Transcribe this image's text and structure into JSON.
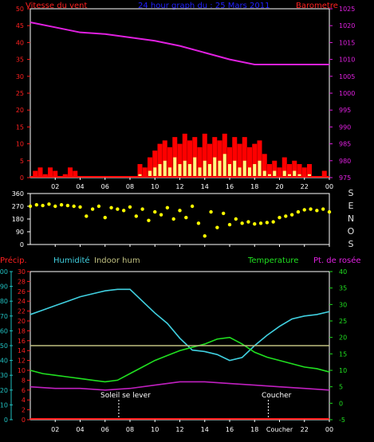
{
  "header": {
    "title": "24 hour graph du : 25 Mars 2011",
    "left_label": "Vitesse du vent",
    "right_label": "Barometre"
  },
  "bottom_labels": {
    "precip": "Précip.",
    "humidity": "Humidité",
    "indoor_hum": "Indoor hum",
    "temperature": "Temperature",
    "dew_point": "Pt. de rosée",
    "sunrise": "Soleil se lever",
    "sunset": "Coucher",
    "sunset_axis": "Coucher"
  },
  "colors": {
    "background": "#000000",
    "axis_red": "#ff2020",
    "pressure": "#e020e0",
    "wind_red": "#ff0000",
    "gust": "#ffff80",
    "direction": "#ffff00",
    "humidity": "#40d0e0",
    "temperature": "#20e020",
    "indoor": "#c0c080",
    "dew": "#c020c0",
    "hum_axis": "#20c0c0",
    "temp_axis": "#20e020",
    "senos": "#e0e0e0",
    "title_blue": "#2020ff",
    "white": "#ffffff"
  },
  "chart_data": [
    {
      "type": "line",
      "name": "wind-pressure",
      "x_tick_labels": [
        "02",
        "04",
        "06",
        "08",
        "10",
        "12",
        "14",
        "16",
        "18",
        "20",
        "22",
        "00"
      ],
      "left_axis": {
        "label": "Vitesse du vent",
        "min": 0,
        "max": 50,
        "ticks": [
          0,
          5,
          10,
          15,
          20,
          25,
          30,
          35,
          40,
          45,
          50
        ]
      },
      "right_axis": {
        "label": "Barometre",
        "min": 975,
        "max": 1025,
        "ticks": [
          975,
          980,
          985,
          990,
          995,
          1000,
          1005,
          1010,
          1015,
          1020,
          1025
        ]
      },
      "series": [
        {
          "name": "Barometre",
          "axis": "right",
          "x": [
            0,
            2,
            4,
            6,
            8,
            10,
            12,
            14,
            16,
            18,
            20,
            22,
            24
          ],
          "y": [
            1021,
            1019.5,
            1018,
            1017.5,
            1016.5,
            1015.5,
            1014,
            1012,
            1010,
            1008.5,
            1008.5,
            1008.5,
            1008.5
          ]
        }
      ],
      "wind_bars": {
        "x": [
          0.4,
          0.8,
          1.2,
          1.6,
          2.0,
          2.8,
          3.2,
          3.6,
          8.8,
          9.2,
          9.6,
          10.0,
          10.4,
          10.8,
          11.2,
          11.6,
          12.0,
          12.4,
          12.8,
          13.2,
          13.6,
          14.0,
          14.4,
          14.8,
          15.2,
          15.6,
          16.0,
          16.4,
          16.8,
          17.2,
          17.6,
          18.0,
          18.4,
          18.8,
          19.2,
          19.6,
          20.0,
          20.4,
          20.8,
          21.2,
          21.6,
          22.0,
          22.4,
          23.6
        ],
        "gust": [
          2,
          3,
          1,
          3,
          2,
          1,
          3,
          2,
          4,
          3,
          6,
          8,
          10,
          11,
          9,
          12,
          10,
          13,
          11,
          12,
          9,
          13,
          10,
          12,
          11,
          13,
          9,
          12,
          10,
          12,
          9,
          10,
          11,
          7,
          4,
          5,
          3,
          6,
          4,
          5,
          4,
          3,
          4,
          2
        ],
        "avg": [
          0,
          0,
          0,
          0,
          0,
          0,
          0,
          0,
          1,
          0,
          2,
          3,
          4,
          5,
          3,
          6,
          4,
          5,
          4,
          6,
          3,
          5,
          4,
          6,
          5,
          7,
          4,
          5,
          3,
          5,
          3,
          4,
          5,
          2,
          1,
          2,
          0,
          2,
          1,
          2,
          1,
          0,
          1,
          0
        ]
      }
    },
    {
      "type": "scatter",
      "name": "wind-direction",
      "x_tick_labels": [
        "02",
        "04",
        "06",
        "08",
        "10",
        "12",
        "14",
        "16",
        "18",
        "20",
        "22",
        "00"
      ],
      "y_ticks": [
        0,
        90,
        180,
        270,
        360
      ],
      "y_range": [
        0,
        360
      ],
      "side_label": [
        "S",
        "E",
        "N",
        "O",
        "S"
      ],
      "points_x": [
        0,
        0.5,
        1,
        1.5,
        2,
        2.5,
        3,
        3.5,
        4,
        4.5,
        5,
        5.5,
        6,
        6.5,
        7,
        7.5,
        8,
        8.5,
        9,
        9.5,
        10,
        10.5,
        11,
        11.5,
        12,
        12.5,
        13,
        13.5,
        14,
        14.5,
        15,
        15.5,
        16,
        16.5,
        17,
        17.5,
        18,
        18.5,
        19,
        19.5,
        20,
        20.5,
        21,
        21.5,
        22,
        22.5,
        23,
        23.5,
        24
      ],
      "points_y": [
        270,
        280,
        275,
        285,
        270,
        280,
        275,
        270,
        265,
        200,
        250,
        270,
        190,
        260,
        250,
        240,
        265,
        200,
        250,
        170,
        230,
        210,
        260,
        180,
        240,
        190,
        270,
        150,
        60,
        230,
        120,
        220,
        140,
        180,
        150,
        160,
        145,
        150,
        155,
        160,
        190,
        200,
        210,
        230,
        245,
        250,
        240,
        250,
        230
      ]
    },
    {
      "type": "line",
      "name": "temp-humidity",
      "x_tick_labels": [
        "02",
        "04",
        "06",
        "08",
        "10",
        "12",
        "14",
        "16",
        "18",
        "Coucher",
        "22",
        "00"
      ],
      "humidity_axis": {
        "label": "Humidité",
        "min": 0,
        "max": 100,
        "ticks": [
          0,
          10,
          20,
          30,
          40,
          50,
          60,
          70,
          80,
          90,
          100
        ]
      },
      "precip_axis": {
        "label": "Précip.",
        "min": 0,
        "max": 30,
        "ticks": [
          0,
          2,
          4,
          6,
          8,
          10,
          12,
          14,
          16,
          18,
          20,
          22,
          24,
          26,
          28,
          30
        ]
      },
      "temp_axis": {
        "label": "Temperature",
        "min": -5,
        "max": 40,
        "ticks": [
          -5,
          0,
          5,
          10,
          15,
          20,
          25,
          30,
          35,
          40
        ]
      },
      "series": [
        {
          "name": "Humidité",
          "axis": "humidity",
          "x": [
            0,
            1,
            2,
            3,
            4,
            5,
            6,
            7,
            8,
            9,
            10,
            11,
            12,
            13,
            14,
            15,
            16,
            17,
            18,
            19,
            20,
            21,
            22,
            23,
            24
          ],
          "y": [
            71,
            74,
            77,
            80,
            83,
            85,
            87,
            88,
            88,
            80,
            72,
            65,
            55,
            47,
            46,
            44,
            40,
            42,
            50,
            57,
            63,
            68,
            70,
            71,
            73
          ]
        },
        {
          "name": "Temperature",
          "axis": "temp",
          "x": [
            0,
            1,
            2,
            3,
            4,
            5,
            6,
            7,
            8,
            9,
            10,
            11,
            12,
            13,
            14,
            15,
            16,
            17,
            18,
            19,
            20,
            21,
            22,
            23,
            24
          ],
          "y": [
            10,
            9,
            8.5,
            8,
            7.5,
            7,
            6.5,
            7,
            9,
            11,
            13,
            14.5,
            16,
            17,
            18,
            19.5,
            20,
            18,
            15.5,
            14,
            13,
            12,
            11,
            10.5,
            9.5
          ]
        },
        {
          "name": "Pt. de rosée",
          "axis": "temp",
          "x": [
            0,
            2,
            4,
            6,
            8,
            10,
            12,
            14,
            16,
            18,
            20,
            22,
            24
          ],
          "y": [
            5,
            4.5,
            4.5,
            4,
            4.5,
            5.5,
            6.5,
            6.5,
            6,
            5.5,
            5,
            4.5,
            4
          ]
        },
        {
          "name": "Indoor hum",
          "axis": "humidity",
          "x": [
            0,
            24
          ],
          "y": [
            50,
            50
          ]
        }
      ],
      "precip_values": {
        "x": [
          0,
          24
        ],
        "y": [
          0,
          0
        ]
      },
      "sunrise_hour": 7.1,
      "sunset_hour": 19.1
    }
  ]
}
